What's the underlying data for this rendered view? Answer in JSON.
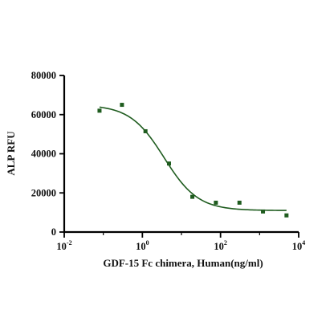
{
  "chart_data": {
    "type": "scatter",
    "title": "",
    "xlabel": "GDF-15 Fc chimera, Human(ng/ml)",
    "ylabel": "ALP RFU",
    "xscale": "log",
    "xlim": [
      0.01,
      10000
    ],
    "ylim": [
      0,
      80000
    ],
    "x_ticks": [
      {
        "base": "10",
        "exp": "-2"
      },
      {
        "base": "10",
        "exp": "0"
      },
      {
        "base": "10",
        "exp": "2"
      },
      {
        "base": "10",
        "exp": "4"
      }
    ],
    "y_ticks": [
      "0",
      "20000",
      "40000",
      "60000",
      "80000"
    ],
    "grid": false,
    "legend": "none",
    "color": "#1f5c1f",
    "series": [
      {
        "points": [
          {
            "x": 0.08,
            "y": 62000
          },
          {
            "x": 0.3,
            "y": 65000
          },
          {
            "x": 1.2,
            "y": 51500
          },
          {
            "x": 4.8,
            "y": 35000
          },
          {
            "x": 19,
            "y": 18000
          },
          {
            "x": 76,
            "y": 15000
          },
          {
            "x": 305,
            "y": 15000
          },
          {
            "x": 1220,
            "y": 10500
          },
          {
            "x": 4880,
            "y": 8500
          }
        ],
        "fit": {
          "model": "4PL",
          "top": 65000,
          "bottom": 11000,
          "ec50": 3.6,
          "hill": 1.0
        }
      }
    ]
  }
}
